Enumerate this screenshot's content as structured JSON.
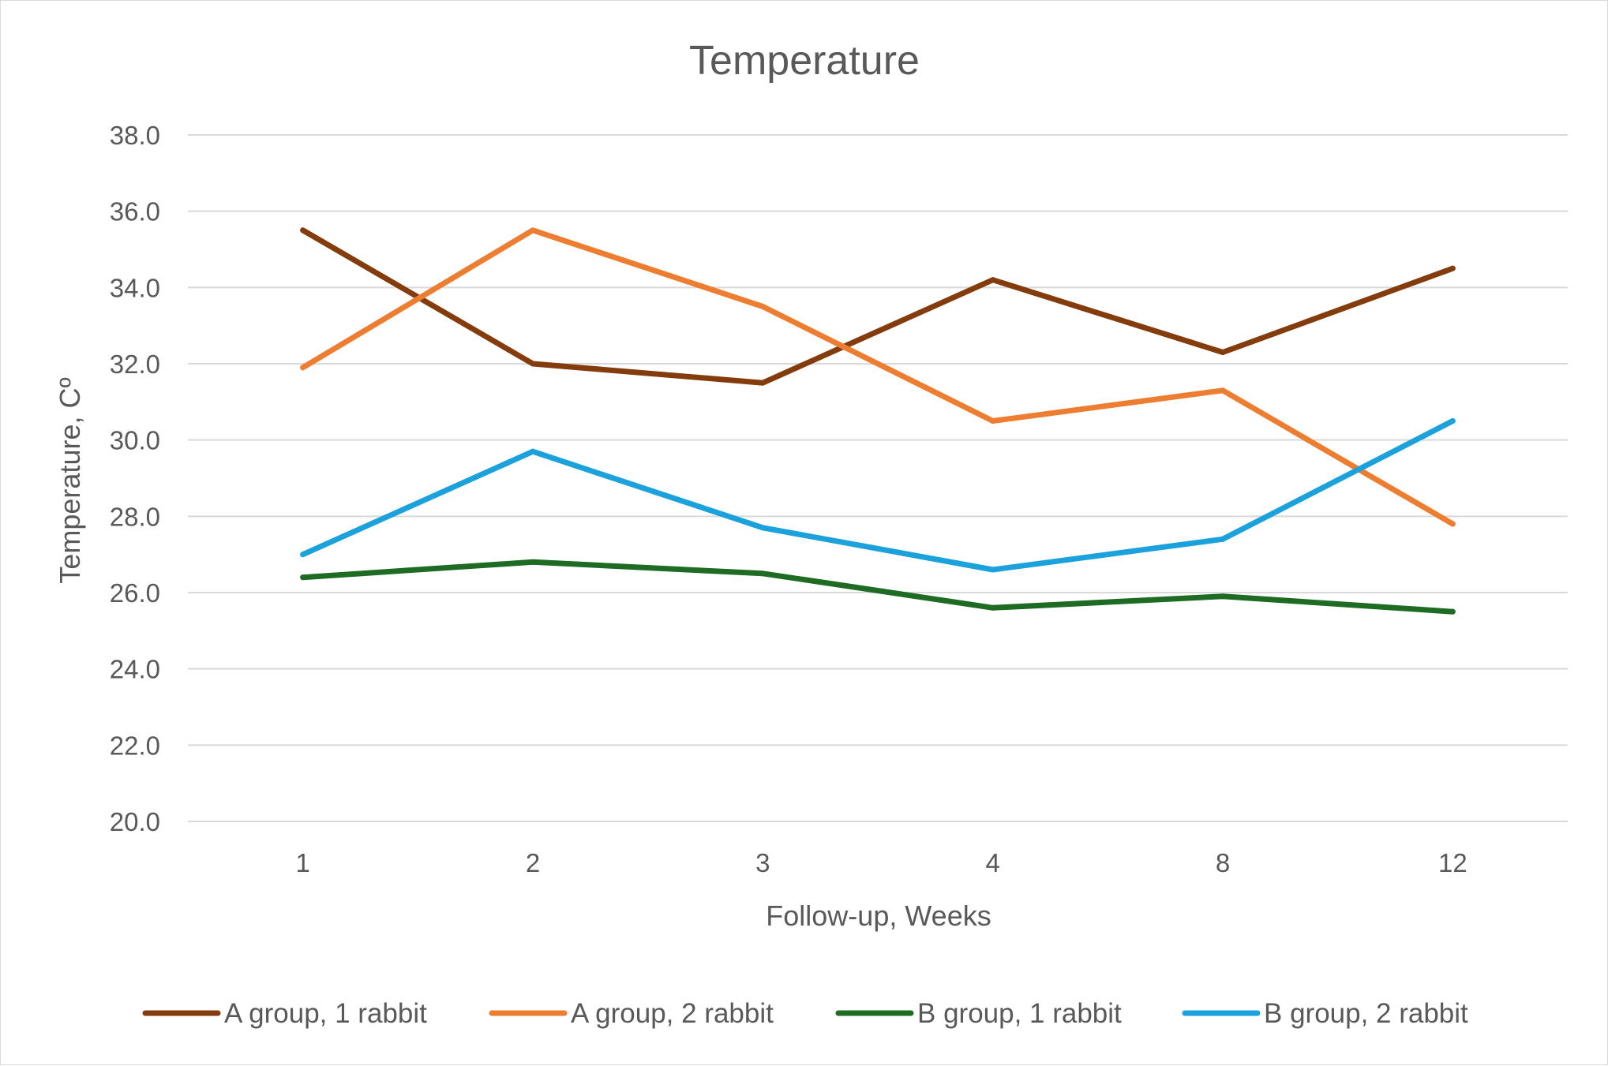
{
  "chart_data": {
    "type": "line",
    "title": "Temperature",
    "xlabel": "Follow-up, Weeks",
    "ylabel": "Temperature, Cº",
    "categories": [
      "1",
      "2",
      "3",
      "4",
      "8",
      "12"
    ],
    "ylim": [
      20.0,
      38.0
    ],
    "yticks": [
      "20.0",
      "22.0",
      "24.0",
      "26.0",
      "28.0",
      "30.0",
      "32.0",
      "34.0",
      "36.0",
      "38.0"
    ],
    "grid": true,
    "legend_position": "bottom",
    "series": [
      {
        "name": "A group, 1 rabbit",
        "color": "#843c0c",
        "values": [
          35.5,
          32.0,
          31.5,
          34.2,
          32.3,
          34.5
        ]
      },
      {
        "name": "A group, 2 rabbit",
        "color": "#ed7d31",
        "values": [
          31.9,
          35.5,
          33.5,
          30.5,
          31.3,
          27.8
        ]
      },
      {
        "name": "B group, 1 rabbit",
        "color": "#1e6b24",
        "values": [
          26.4,
          26.8,
          26.5,
          25.6,
          25.9,
          25.5
        ]
      },
      {
        "name": "B group, 2 rabbit",
        "color": "#1ba1dc",
        "values": [
          27.0,
          29.7,
          27.7,
          26.6,
          27.4,
          30.5
        ]
      }
    ]
  }
}
